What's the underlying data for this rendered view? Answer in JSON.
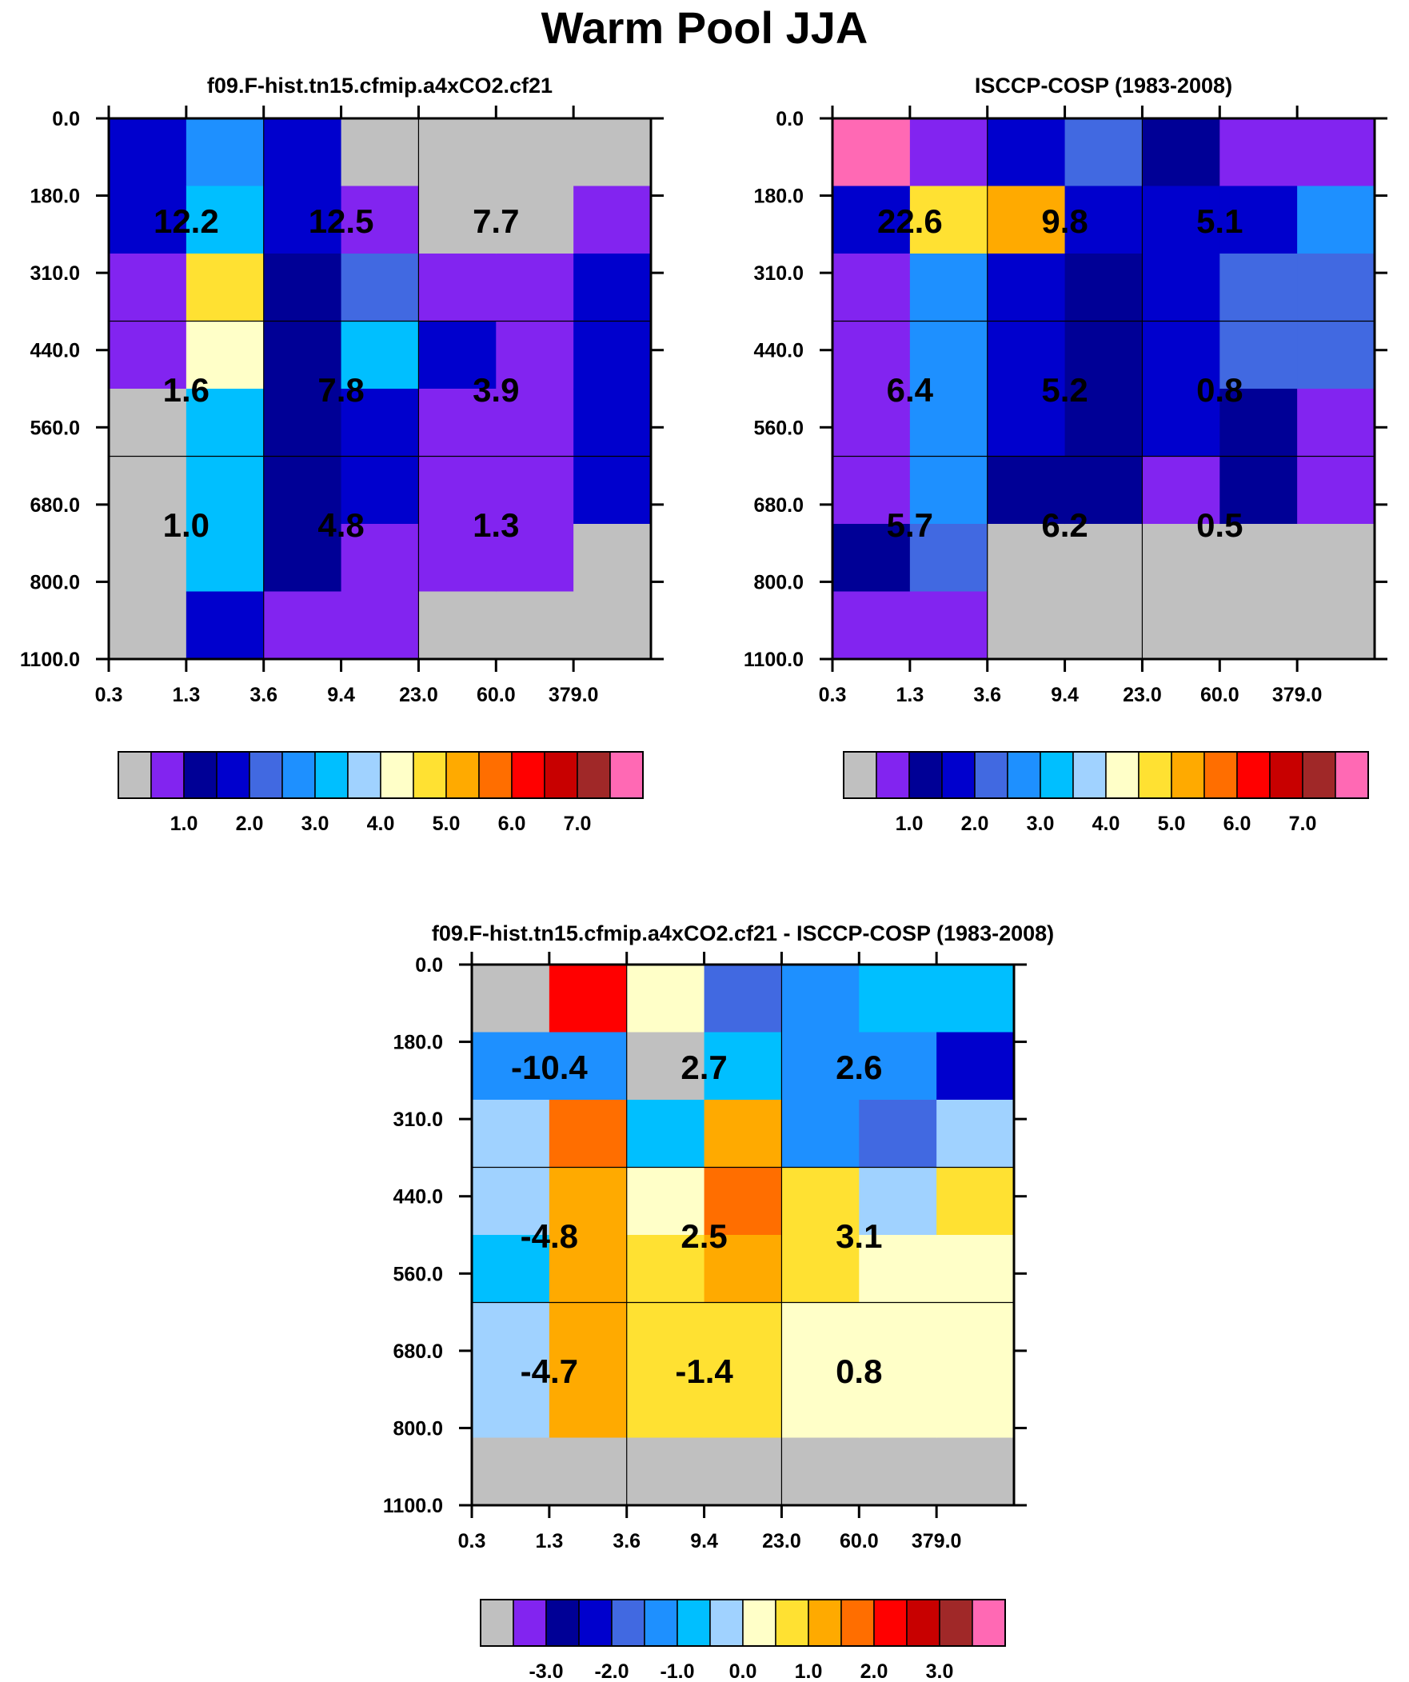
{
  "figure": {
    "title": "Warm Pool JJA"
  },
  "colors": {
    "main_palette": [
      "#C0C0C0",
      "#8224F0",
      "#000096",
      "#0000CD",
      "#4169E1",
      "#1E90FF",
      "#00BFFF",
      "#A0D2FF",
      "#FFFFC8",
      "#FFE132",
      "#FFAA00",
      "#FF6E00",
      "#FF0000",
      "#C80000",
      "#A02828",
      "#FF69B4"
    ],
    "diff_palette": [
      "#C0C0C0",
      "#8224F0",
      "#000096",
      "#0000CD",
      "#4169E1",
      "#1E90FF",
      "#00BFFF",
      "#A0D2FF",
      "#FFFFC8",
      "#FFE132",
      "#FFAA00",
      "#FF6E00",
      "#FF0000",
      "#C80000",
      "#A02828",
      "#FF69B4"
    ]
  },
  "chart_data": [
    {
      "type": "heatmap",
      "title": "f09.F-hist.tn15.cfmip.a4xCO2.cf21",
      "xlabel": "",
      "ylabel": "",
      "x_tick_labels": [
        "0.3",
        "1.3",
        "3.6",
        "9.4",
        "23.0",
        "60.0",
        "379.0"
      ],
      "y_tick_labels": [
        "0.0",
        "180.0",
        "310.0",
        "440.0",
        "560.0",
        "680.0",
        "800.0",
        "1100.0"
      ],
      "cells": [
        [
          3,
          3,
          1,
          1,
          0,
          0,
          0,
          0
        ],
        [
          5,
          6,
          9,
          8,
          6,
          6,
          6,
          3
        ],
        [
          3,
          3,
          2,
          2,
          2,
          2,
          2,
          1
        ],
        [
          0,
          1,
          4,
          6,
          3,
          3,
          1,
          1
        ],
        [
          0,
          0,
          1,
          3,
          1,
          1,
          1,
          0
        ],
        [
          0,
          0,
          1,
          1,
          1,
          1,
          1,
          0
        ],
        [
          0,
          1,
          3,
          3,
          3,
          3,
          0,
          0
        ]
      ],
      "annotations": [
        [
          "12.2",
          "12.5",
          "7.7"
        ],
        [
          "1.6",
          "7.8",
          "3.9"
        ],
        [
          "1.0",
          "4.8",
          "1.3"
        ]
      ],
      "colorbar": {
        "palette": "main_palette",
        "labels": [
          "1.0",
          "2.0",
          "3.0",
          "4.0",
          "5.0",
          "6.0",
          "7.0"
        ]
      }
    },
    {
      "type": "heatmap",
      "title": "ISCCP-COSP (1983-2008)",
      "xlabel": "",
      "ylabel": "",
      "x_tick_labels": [
        "0.3",
        "1.3",
        "3.6",
        "9.4",
        "23.0",
        "60.0",
        "379.0"
      ],
      "y_tick_labels": [
        "0.0",
        "180.0",
        "310.0",
        "440.0",
        "560.0",
        "680.0",
        "800.0",
        "1100.0"
      ],
      "cells": [
        [
          15,
          3,
          1,
          1,
          1,
          1,
          2,
          1
        ],
        [
          1,
          9,
          5,
          5,
          5,
          5,
          4,
          1
        ],
        [
          3,
          10,
          3,
          3,
          3,
          2,
          0,
          0
        ],
        [
          4,
          3,
          2,
          2,
          2,
          2,
          0,
          0
        ],
        [
          2,
          3,
          3,
          3,
          3,
          1,
          0,
          0
        ],
        [
          1,
          3,
          4,
          4,
          2,
          2,
          0,
          0
        ],
        [
          1,
          5,
          4,
          4,
          1,
          1,
          0,
          0
        ]
      ],
      "annotations": [
        [
          "22.6",
          "9.8",
          "5.1"
        ],
        [
          "6.4",
          "5.2",
          "0.8"
        ],
        [
          "5.7",
          "6.2",
          "0.5"
        ]
      ],
      "colorbar": {
        "palette": "main_palette",
        "labels": [
          "1.0",
          "2.0",
          "3.0",
          "4.0",
          "5.0",
          "6.0",
          "7.0"
        ]
      }
    },
    {
      "type": "heatmap",
      "title": "f09.F-hist.tn15.cfmip.a4xCO2.cf21 - ISCCP-COSP (1983-2008)",
      "xlabel": "",
      "ylabel": "",
      "x_tick_labels": [
        "0.3",
        "1.3",
        "3.6",
        "9.4",
        "23.0",
        "60.0",
        "379.0"
      ],
      "y_tick_labels": [
        "0.0",
        "180.0",
        "310.0",
        "440.0",
        "560.0",
        "680.0",
        "800.0",
        "1100.0"
      ],
      "cells": [
        [
          0,
          5,
          7,
          7,
          6,
          7,
          7,
          0
        ],
        [
          12,
          5,
          11,
          10,
          10,
          10,
          10,
          0
        ],
        [
          8,
          0,
          6,
          8,
          9,
          9,
          9,
          0
        ],
        [
          4,
          6,
          10,
          11,
          10,
          9,
          9,
          0
        ],
        [
          5,
          5,
          5,
          9,
          9,
          8,
          8,
          0
        ],
        [
          6,
          5,
          4,
          7,
          8,
          8,
          8,
          0
        ],
        [
          6,
          3,
          7,
          9,
          8,
          8,
          8,
          0
        ]
      ],
      "annotations": [
        [
          "-10.4",
          "2.7",
          "2.6"
        ],
        [
          "-4.8",
          "2.5",
          "3.1"
        ],
        [
          "-4.7",
          "-1.4",
          "0.8"
        ]
      ],
      "colorbar": {
        "palette": "diff_palette",
        "labels": [
          "-3.0",
          "-2.0",
          "-1.0",
          "0.0",
          "1.0",
          "2.0",
          "3.0"
        ]
      }
    }
  ]
}
